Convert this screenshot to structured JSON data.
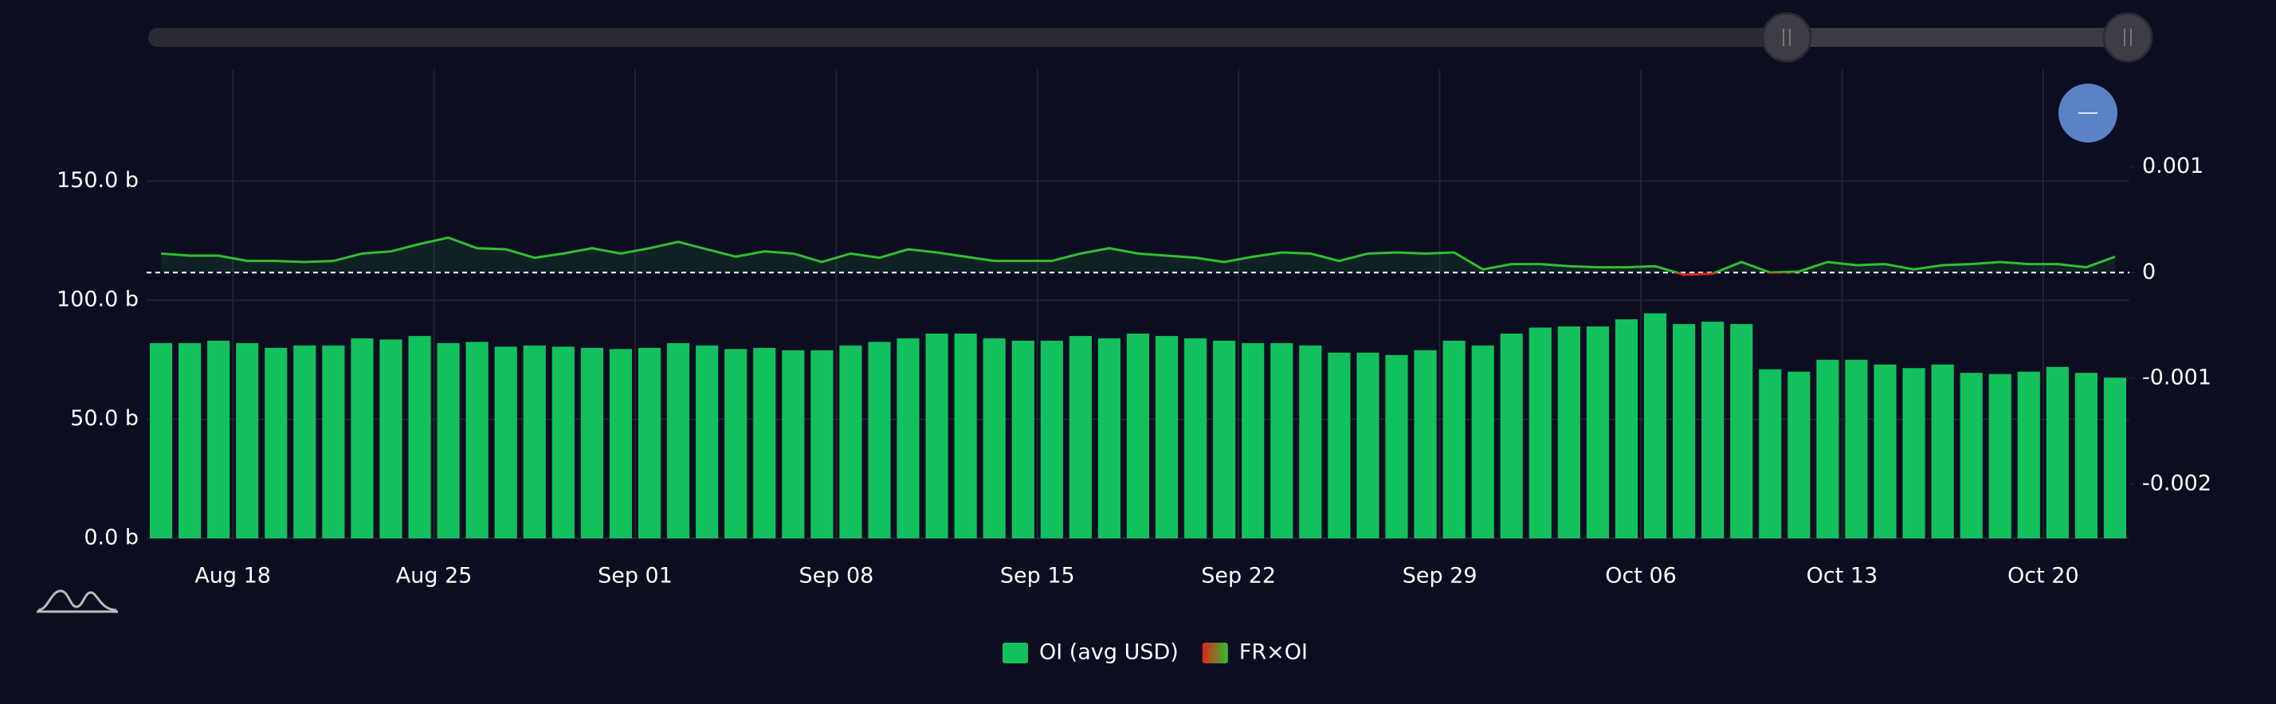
{
  "chart_data": {
    "type": "bar",
    "categories": [
      "Aug 15",
      "Aug 16",
      "Aug 17",
      "Aug 18",
      "Aug 19",
      "Aug 20",
      "Aug 21",
      "Aug 22",
      "Aug 23",
      "Aug 24",
      "Aug 25",
      "Aug 26",
      "Aug 27",
      "Aug 28",
      "Aug 29",
      "Aug 30",
      "Aug 31",
      "Sep 01",
      "Sep 02",
      "Sep 03",
      "Sep 04",
      "Sep 05",
      "Sep 06",
      "Sep 07",
      "Sep 08",
      "Sep 09",
      "Sep 10",
      "Sep 11",
      "Sep 12",
      "Sep 13",
      "Sep 14",
      "Sep 15",
      "Sep 16",
      "Sep 17",
      "Sep 18",
      "Sep 19",
      "Sep 20",
      "Sep 21",
      "Sep 22",
      "Sep 23",
      "Sep 24",
      "Sep 25",
      "Sep 26",
      "Sep 27",
      "Sep 28",
      "Sep 29",
      "Sep 30",
      "Oct 01",
      "Oct 02",
      "Oct 03",
      "Oct 04",
      "Oct 05",
      "Oct 06",
      "Oct 07",
      "Oct 08",
      "Oct 09",
      "Oct 10",
      "Oct 11",
      "Oct 12",
      "Oct 13",
      "Oct 14",
      "Oct 15",
      "Oct 16",
      "Oct 17",
      "Oct 18",
      "Oct 19",
      "Oct 20",
      "Oct 21",
      "Oct 22"
    ],
    "series": [
      {
        "name": "OI (avg USD)",
        "color": "#12c15e",
        "type": "bar",
        "values": [
          82,
          82,
          83,
          82,
          80,
          81,
          81,
          84,
          83.5,
          85,
          82,
          82.5,
          80.5,
          81,
          80.5,
          80,
          79.5,
          80,
          82,
          81,
          79.5,
          80,
          79,
          79,
          81,
          82.5,
          84,
          86,
          86,
          84,
          83,
          83,
          85,
          84,
          86,
          85,
          84,
          83,
          82,
          82,
          81,
          78,
          78,
          77,
          79,
          83,
          81,
          86,
          88.5,
          89,
          89,
          92,
          94.5,
          90,
          91,
          90,
          71,
          70,
          75,
          75,
          73,
          71.5,
          73,
          69.5,
          69,
          70,
          72,
          69.5,
          67.5
        ]
      },
      {
        "name": "FR×OI",
        "color": "#2fbf2f",
        "negative_color": "#e0241c",
        "type": "line",
        "axis": "y2",
        "values": [
          0.00018,
          0.00016,
          0.00016,
          0.00011,
          0.00011,
          0.0001,
          0.00011,
          0.00018,
          0.0002,
          0.00027,
          0.00033,
          0.00023,
          0.00022,
          0.00014,
          0.00018,
          0.00023,
          0.00018,
          0.00023,
          0.00029,
          0.00022,
          0.00015,
          0.0002,
          0.00018,
          0.0001,
          0.00018,
          0.00014,
          0.00022,
          0.00019,
          0.00015,
          0.00011,
          0.00011,
          0.00011,
          0.00018,
          0.00023,
          0.00018,
          0.00016,
          0.00014,
          0.0001,
          0.00015,
          0.00019,
          0.00018,
          0.00011,
          0.00018,
          0.00019,
          0.00018,
          0.00019,
          3e-05,
          8e-05,
          8e-05,
          6e-05,
          5e-05,
          5e-05,
          6e-05,
          -2e-05,
          -1e-05,
          0.0001,
          0,
          1e-05,
          0.0001,
          7e-05,
          8e-05,
          3e-05,
          7e-05,
          8e-05,
          0.0001,
          8e-05,
          8e-05,
          5e-05,
          0.00015
        ]
      }
    ],
    "ylim": [
      0,
      197
    ],
    "yticks": [
      {
        "value": 0,
        "label": "0.0 b"
      },
      {
        "value": 50,
        "label": "50.0 b"
      },
      {
        "value": 100,
        "label": "100.0 b"
      },
      {
        "value": 150,
        "label": "150.0 b"
      }
    ],
    "y2lim": [
      -0.00251,
      0.00192
    ],
    "y2ticks": [
      -0.002,
      -0.001,
      0,
      0.001
    ],
    "xticks": [
      "Aug 18",
      "Aug 25",
      "Sep 01",
      "Sep 08",
      "Sep 15",
      "Sep 22",
      "Sep 29",
      "Oct 06",
      "Oct 13",
      "Oct 20"
    ],
    "grid": true,
    "legend": "bottom"
  }
}
